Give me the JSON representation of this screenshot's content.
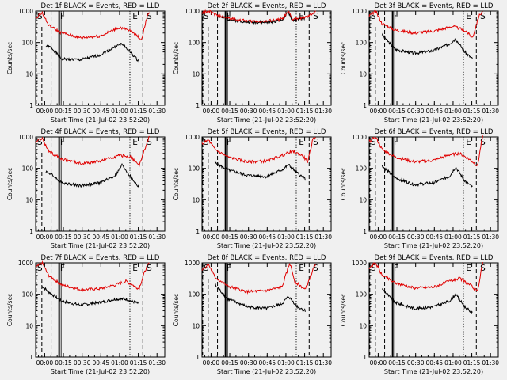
{
  "window": {
    "background": "#f0f0f0"
  },
  "colors": {
    "events": "#000000",
    "lld": "#e00000",
    "axis": "#000000"
  },
  "x_tick_labels": [
    "00:00",
    "00:15",
    "00:30",
    "00:45",
    "01:00",
    "01:15",
    "01:30"
  ],
  "y_tick_labels": [
    "1",
    "10",
    "100",
    "1000"
  ],
  "ylabel": "Counts/sec",
  "xlabel": "Start Time (21-Jul-02 23:52:20)",
  "marker_labels": {
    "s": "S",
    "f": "F",
    "e": "E"
  },
  "chart_data": [
    {
      "type": "line",
      "title": "Det 1f BLACK = Events, RED = LLD",
      "xlabel": "Start Time (21-Jul-02 23:52:20)",
      "ylabel": "Counts/sec",
      "ylog": true,
      "ylim": [
        1,
        1000
      ],
      "xlim": [
        "23:52:20",
        "01:34:00"
      ],
      "series": [
        {
          "name": "Events",
          "color": "#000000",
          "approx_profile": [
            [
              0.08,
              75
            ],
            [
              0.12,
              70
            ],
            [
              0.2,
              30
            ],
            [
              0.35,
              28
            ],
            [
              0.5,
              40
            ],
            [
              0.62,
              75
            ],
            [
              0.67,
              90
            ],
            [
              0.74,
              45
            ],
            [
              0.8,
              25
            ]
          ]
        },
        {
          "name": "LLD",
          "color": "#e00000",
          "approx_profile": [
            [
              0.0,
              600
            ],
            [
              0.05,
              900
            ],
            [
              0.1,
              350
            ],
            [
              0.2,
              200
            ],
            [
              0.35,
              140
            ],
            [
              0.5,
              160
            ],
            [
              0.65,
              300
            ],
            [
              0.75,
              220
            ],
            [
              0.82,
              120
            ],
            [
              0.86,
              600
            ],
            [
              0.88,
              1000
            ]
          ]
        }
      ]
    },
    {
      "type": "line",
      "title": "Det 2f BLACK = Events, RED = LLD",
      "xlabel": "Start Time (21-Jul-02 23:52:20)",
      "ylabel": "Counts/sec",
      "ylog": true,
      "ylim": [
        1,
        1000
      ],
      "xlim": [
        "23:52:20",
        "01:34:00"
      ],
      "series": [
        {
          "name": "Events",
          "color": "#000000",
          "approx_profile": [
            [
              0.12,
              700
            ],
            [
              0.2,
              550
            ],
            [
              0.35,
              450
            ],
            [
              0.5,
              430
            ],
            [
              0.62,
              520
            ],
            [
              0.67,
              900
            ],
            [
              0.7,
              500
            ],
            [
              0.8,
              600
            ]
          ]
        },
        {
          "name": "LLD",
          "color": "#e00000",
          "approx_profile": [
            [
              0.0,
              900
            ],
            [
              0.05,
              1000
            ],
            [
              0.12,
              700
            ],
            [
              0.2,
              600
            ],
            [
              0.35,
              480
            ],
            [
              0.5,
              470
            ],
            [
              0.62,
              560
            ],
            [
              0.67,
              950
            ],
            [
              0.7,
              550
            ],
            [
              0.82,
              650
            ],
            [
              0.88,
              1000
            ]
          ]
        }
      ]
    },
    {
      "type": "line",
      "title": "Det 3f BLACK = Events, RED = LLD",
      "xlabel": "Start Time (21-Jul-02 23:52:20)",
      "ylabel": "Counts/sec",
      "ylog": true,
      "ylim": [
        1,
        1000
      ],
      "xlim": [
        "23:52:20",
        "01:34:00"
      ],
      "series": [
        {
          "name": "Events",
          "color": "#000000",
          "approx_profile": [
            [
              0.1,
              180
            ],
            [
              0.2,
              60
            ],
            [
              0.35,
              45
            ],
            [
              0.5,
              55
            ],
            [
              0.62,
              90
            ],
            [
              0.67,
              130
            ],
            [
              0.74,
              50
            ],
            [
              0.8,
              30
            ]
          ]
        },
        {
          "name": "LLD",
          "color": "#e00000",
          "approx_profile": [
            [
              0.0,
              700
            ],
            [
              0.05,
              1000
            ],
            [
              0.1,
              400
            ],
            [
              0.2,
              250
            ],
            [
              0.35,
              200
            ],
            [
              0.5,
              230
            ],
            [
              0.65,
              330
            ],
            [
              0.75,
              230
            ],
            [
              0.8,
              140
            ],
            [
              0.85,
              700
            ],
            [
              0.88,
              1000
            ]
          ]
        }
      ]
    },
    {
      "type": "line",
      "title": "Det 4f BLACK = Events, RED = LLD",
      "xlabel": "Start Time (21-Jul-02 23:52:20)",
      "ylabel": "Counts/sec",
      "ylog": true,
      "ylim": [
        1,
        1000
      ],
      "xlim": [
        "23:52:20",
        "01:34:00"
      ],
      "series": [
        {
          "name": "Events",
          "color": "#000000",
          "approx_profile": [
            [
              0.08,
              80
            ],
            [
              0.12,
              65
            ],
            [
              0.2,
              35
            ],
            [
              0.35,
              28
            ],
            [
              0.5,
              35
            ],
            [
              0.62,
              60
            ],
            [
              0.67,
              130
            ],
            [
              0.74,
              50
            ],
            [
              0.8,
              25
            ]
          ]
        },
        {
          "name": "LLD",
          "color": "#e00000",
          "approx_profile": [
            [
              0.0,
              700
            ],
            [
              0.05,
              900
            ],
            [
              0.1,
              350
            ],
            [
              0.2,
              200
            ],
            [
              0.35,
              140
            ],
            [
              0.5,
              170
            ],
            [
              0.65,
              260
            ],
            [
              0.74,
              230
            ],
            [
              0.8,
              120
            ],
            [
              0.86,
              600
            ],
            [
              0.88,
              1000
            ]
          ]
        }
      ]
    },
    {
      "type": "line",
      "title": "Det 5f BLACK = Events, RED = LLD",
      "xlabel": "Start Time (21-Jul-02 23:52:20)",
      "ylabel": "Counts/sec",
      "ylog": true,
      "ylim": [
        1,
        1000
      ],
      "xlim": [
        "23:52:20",
        "01:34:00"
      ],
      "series": [
        {
          "name": "Events",
          "color": "#000000",
          "approx_profile": [
            [
              0.1,
              150
            ],
            [
              0.2,
              90
            ],
            [
              0.35,
              60
            ],
            [
              0.5,
              55
            ],
            [
              0.62,
              90
            ],
            [
              0.67,
              130
            ],
            [
              0.74,
              70
            ],
            [
              0.8,
              45
            ]
          ]
        },
        {
          "name": "LLD",
          "color": "#e00000",
          "approx_profile": [
            [
              0.0,
              600
            ],
            [
              0.05,
              800
            ],
            [
              0.1,
              400
            ],
            [
              0.2,
              230
            ],
            [
              0.35,
              160
            ],
            [
              0.5,
              170
            ],
            [
              0.62,
              260
            ],
            [
              0.7,
              350
            ],
            [
              0.78,
              250
            ],
            [
              0.82,
              160
            ],
            [
              0.86,
              900
            ],
            [
              0.88,
              1000
            ]
          ]
        }
      ]
    },
    {
      "type": "line",
      "title": "Det 6f BLACK = Events, RED = LLD",
      "xlabel": "Start Time (21-Jul-02 23:52:20)",
      "ylabel": "Counts/sec",
      "ylog": true,
      "ylim": [
        1,
        1000
      ],
      "xlim": [
        "23:52:20",
        "01:34:00"
      ],
      "series": [
        {
          "name": "Events",
          "color": "#000000",
          "approx_profile": [
            [
              0.1,
              120
            ],
            [
              0.2,
              50
            ],
            [
              0.35,
              30
            ],
            [
              0.5,
              35
            ],
            [
              0.62,
              55
            ],
            [
              0.67,
              110
            ],
            [
              0.74,
              40
            ],
            [
              0.8,
              25
            ]
          ]
        },
        {
          "name": "LLD",
          "color": "#e00000",
          "approx_profile": [
            [
              0.0,
              700
            ],
            [
              0.05,
              1000
            ],
            [
              0.1,
              400
            ],
            [
              0.2,
              230
            ],
            [
              0.35,
              160
            ],
            [
              0.5,
              180
            ],
            [
              0.62,
              270
            ],
            [
              0.7,
              300
            ],
            [
              0.78,
              190
            ],
            [
              0.84,
              120
            ],
            [
              0.87,
              700
            ],
            [
              0.88,
              1000
            ]
          ]
        }
      ]
    },
    {
      "type": "line",
      "title": "Det 7f BLACK = Events, RED = LLD",
      "xlabel": "Start Time (21-Jul-02 23:52:20)",
      "ylabel": "Counts/sec",
      "ylog": true,
      "ylim": [
        1,
        1000
      ],
      "xlim": [
        "23:52:20",
        "01:34:00"
      ],
      "series": [
        {
          "name": "Events",
          "color": "#000000",
          "approx_profile": [
            [
              0.05,
              180
            ],
            [
              0.1,
              120
            ],
            [
              0.2,
              60
            ],
            [
              0.35,
              45
            ],
            [
              0.5,
              55
            ],
            [
              0.62,
              70
            ],
            [
              0.7,
              70
            ],
            [
              0.8,
              50
            ]
          ]
        },
        {
          "name": "LLD",
          "color": "#e00000",
          "approx_profile": [
            [
              0.0,
              700
            ],
            [
              0.05,
              1000
            ],
            [
              0.1,
              400
            ],
            [
              0.2,
              200
            ],
            [
              0.35,
              140
            ],
            [
              0.5,
              150
            ],
            [
              0.62,
              200
            ],
            [
              0.7,
              260
            ],
            [
              0.8,
              150
            ],
            [
              0.85,
              600
            ],
            [
              0.88,
              1000
            ]
          ]
        }
      ]
    },
    {
      "type": "line",
      "title": "Det 8f BLACK = Events, RED = LLD",
      "xlabel": "Start Time (21-Jul-02 23:52:20)",
      "ylabel": "Counts/sec",
      "ylog": true,
      "ylim": [
        1,
        1000
      ],
      "xlim": [
        "23:52:20",
        "01:34:00"
      ],
      "series": [
        {
          "name": "Events",
          "color": "#000000",
          "approx_profile": [
            [
              0.1,
              200
            ],
            [
              0.2,
              70
            ],
            [
              0.35,
              40
            ],
            [
              0.5,
              35
            ],
            [
              0.62,
              50
            ],
            [
              0.67,
              85
            ],
            [
              0.74,
              40
            ],
            [
              0.8,
              30
            ]
          ]
        },
        {
          "name": "LLD",
          "color": "#e00000",
          "approx_profile": [
            [
              0.0,
              600
            ],
            [
              0.05,
              900
            ],
            [
              0.1,
              350
            ],
            [
              0.2,
              180
            ],
            [
              0.35,
              120
            ],
            [
              0.5,
              130
            ],
            [
              0.62,
              170
            ],
            [
              0.68,
              1000
            ],
            [
              0.72,
              250
            ],
            [
              0.8,
              140
            ],
            [
              0.86,
              600
            ],
            [
              0.88,
              1000
            ]
          ]
        }
      ]
    },
    {
      "type": "line",
      "title": "Det 9f BLACK = Events, RED = LLD",
      "xlabel": "Start Time (21-Jul-02 23:52:20)",
      "ylabel": "Counts/sec",
      "ylog": true,
      "ylim": [
        1,
        1000
      ],
      "xlim": [
        "23:52:20",
        "01:34:00"
      ],
      "series": [
        {
          "name": "Events",
          "color": "#000000",
          "approx_profile": [
            [
              0.1,
              150
            ],
            [
              0.2,
              55
            ],
            [
              0.35,
              35
            ],
            [
              0.5,
              40
            ],
            [
              0.62,
              60
            ],
            [
              0.67,
              100
            ],
            [
              0.74,
              40
            ],
            [
              0.8,
              25
            ]
          ]
        },
        {
          "name": "LLD",
          "color": "#e00000",
          "approx_profile": [
            [
              0.0,
              700
            ],
            [
              0.05,
              1000
            ],
            [
              0.1,
              400
            ],
            [
              0.2,
              230
            ],
            [
              0.35,
              160
            ],
            [
              0.5,
              170
            ],
            [
              0.62,
              260
            ],
            [
              0.7,
              320
            ],
            [
              0.78,
              200
            ],
            [
              0.84,
              120
            ],
            [
              0.87,
              700
            ],
            [
              0.88,
              1000
            ]
          ]
        }
      ]
    }
  ]
}
